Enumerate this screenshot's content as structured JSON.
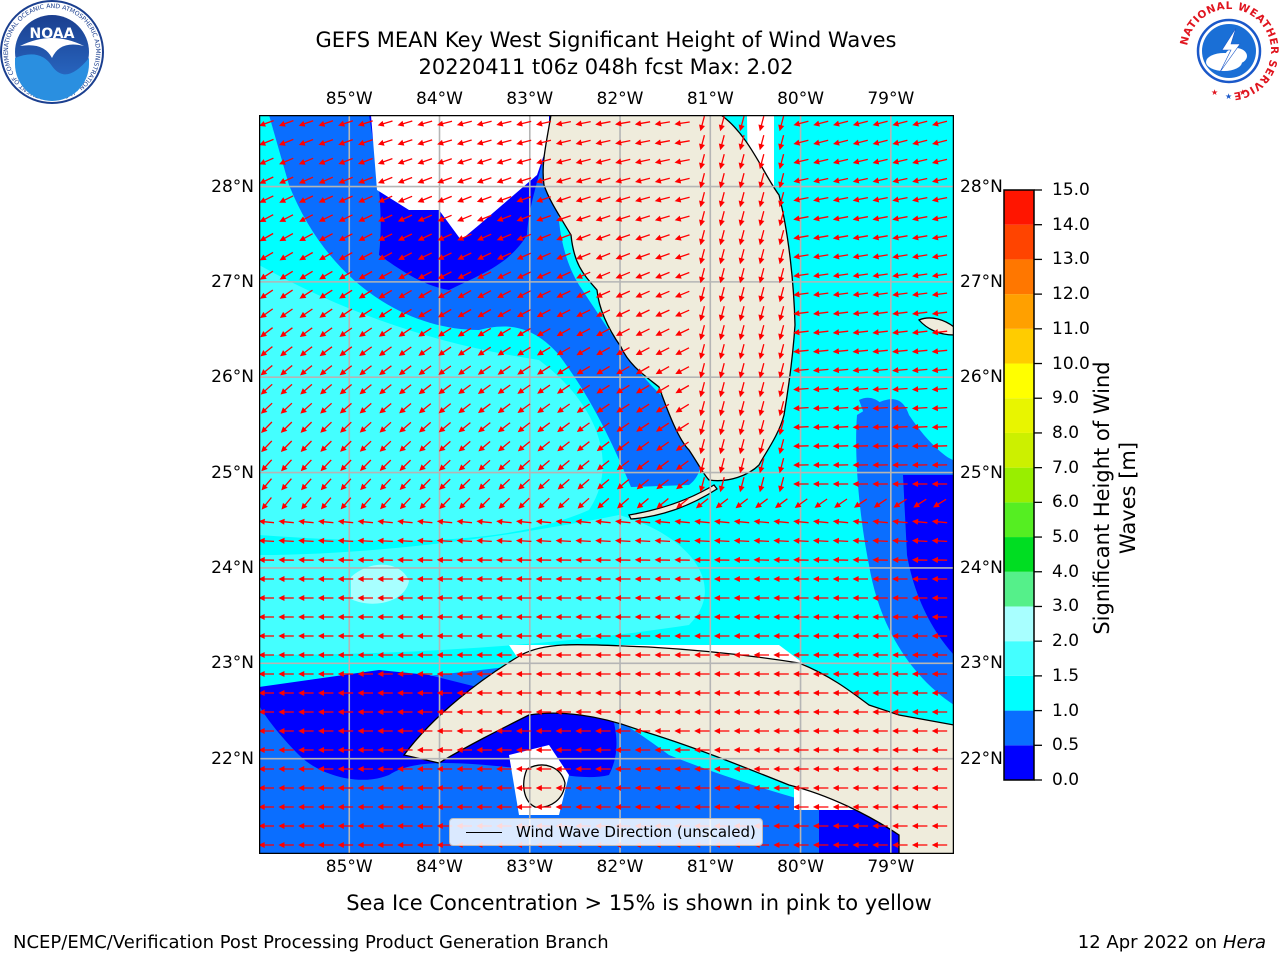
{
  "title": {
    "line1": "GEFS MEAN Key West Significant Height of Wind Waves",
    "line2": "20220411 t06z 048h fcst   Max: 2.02"
  },
  "map": {
    "lon_range": [
      -86.0,
      -78.3
    ],
    "lat_range": [
      21.0,
      28.75
    ],
    "lon_ticks": [
      "85°W",
      "84°W",
      "83°W",
      "82°W",
      "81°W",
      "80°W",
      "79°W"
    ],
    "lat_ticks": [
      "28°N",
      "27°N",
      "26°N",
      "25°N",
      "24°N",
      "23°N",
      "22°N"
    ],
    "grid": true,
    "land_color": "#efecdc",
    "ocean_color": "#00ffff",
    "wind_vector_color": "#ff0000"
  },
  "legend": {
    "label": "Wind Wave Direction (unscaled)"
  },
  "colorbar": {
    "label": "Significant Height of Wind Waves [m]",
    "ticks": [
      "15.0",
      "14.0",
      "13.0",
      "12.0",
      "11.0",
      "10.0",
      "9.0",
      "8.0",
      "7.0",
      "6.0",
      "5.0",
      "4.0",
      "3.0",
      "2.0",
      "1.5",
      "1.0",
      "0.5",
      "0.0"
    ],
    "bins": [
      {
        "from": 0.0,
        "to": 0.5,
        "color": "#0000ff"
      },
      {
        "from": 0.5,
        "to": 1.0,
        "color": "#0a6eff"
      },
      {
        "from": 1.0,
        "to": 1.5,
        "color": "#00ffff"
      },
      {
        "from": 1.5,
        "to": 2.0,
        "color": "#44ffff"
      },
      {
        "from": 2.0,
        "to": 3.0,
        "color": "#a8ffff"
      },
      {
        "from": 3.0,
        "to": 4.0,
        "color": "#55f08a"
      },
      {
        "from": 4.0,
        "to": 5.0,
        "color": "#00dd22"
      },
      {
        "from": 5.0,
        "to": 6.0,
        "color": "#55ee22"
      },
      {
        "from": 6.0,
        "to": 7.0,
        "color": "#99ee00"
      },
      {
        "from": 7.0,
        "to": 8.0,
        "color": "#ccf000"
      },
      {
        "from": 8.0,
        "to": 9.0,
        "color": "#e8f500"
      },
      {
        "from": 9.0,
        "to": 10.0,
        "color": "#ffff00"
      },
      {
        "from": 10.0,
        "to": 11.0,
        "color": "#ffcc00"
      },
      {
        "from": 11.0,
        "to": 12.0,
        "color": "#ffa000"
      },
      {
        "from": 12.0,
        "to": 13.0,
        "color": "#ff7700"
      },
      {
        "from": 13.0,
        "to": 14.0,
        "color": "#ff4400"
      },
      {
        "from": 14.0,
        "to": 15.0,
        "color": "#ff1500"
      }
    ]
  },
  "subtitle": "Sea Ice Concentration > 15% is shown in pink to yellow",
  "footer": {
    "left": "NCEP/EMC/Verification Post Processing Product Generation Branch",
    "right_date": "12 Apr 2022 on ",
    "right_host": "Hera"
  },
  "logos": {
    "noaa_text": "NOAA",
    "noaa_ring_text": "NATIONAL OCEANIC AND ATMOSPHERIC ADMINISTRATION · U.S. DEPARTMENT OF COMMERCE",
    "nws_ring_text": "NATIONAL WEATHER SERVICE"
  }
}
